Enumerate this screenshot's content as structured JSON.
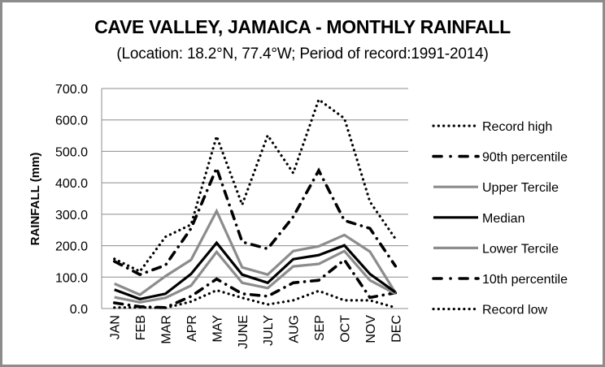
{
  "chart_data": {
    "type": "line",
    "title": "CAVE VALLEY, JAMAICA - MONTHLY RAINFALL",
    "subtitle": "(Location: 18.2°N, 77.4°W; Period of record:1991-2014)",
    "xlabel": "",
    "ylabel": "RAINFALL (mm)",
    "ylim": [
      0,
      700
    ],
    "yticks": [
      0,
      100,
      200,
      300,
      400,
      500,
      600,
      700
    ],
    "ytick_labels": [
      "0.0",
      "100.0",
      "200.0",
      "300.0",
      "400.0",
      "500.0",
      "600.0",
      "700.0"
    ],
    "grid": true,
    "legend_position": "right",
    "categories": [
      "JAN",
      "FEB",
      "MAR",
      "APR",
      "MAY",
      "JUNE",
      "JULY",
      "AUG",
      "SEP",
      "OCT",
      "NOV",
      "DEC"
    ],
    "series": [
      {
        "name": "Record high",
        "style": "dotted",
        "color": "#000000",
        "values": [
          158,
          118,
          228,
          267,
          548,
          330,
          551,
          431,
          665,
          605,
          340,
          222
        ]
      },
      {
        "name": "90th percentile",
        "style": "dash-dot",
        "color": "#000000",
        "values": [
          150,
          108,
          138,
          255,
          447,
          212,
          190,
          292,
          439,
          280,
          255,
          135
        ]
      },
      {
        "name": "Upper Tercile",
        "style": "solid",
        "color": "#8c8c8c",
        "values": [
          79,
          44,
          103,
          155,
          310,
          131,
          108,
          183,
          198,
          234,
          181,
          50
        ]
      },
      {
        "name": "Median",
        "style": "solid",
        "color": "#000000",
        "values": [
          60,
          30,
          47,
          110,
          209,
          108,
          82,
          157,
          170,
          201,
          110,
          52
        ]
      },
      {
        "name": "Lower Tercile",
        "style": "solid",
        "color": "#8c8c8c",
        "values": [
          36,
          20,
          34,
          73,
          180,
          82,
          65,
          134,
          142,
          183,
          90,
          47
        ]
      },
      {
        "name": "10th percentile",
        "style": "dash-dot",
        "color": "#000000",
        "values": [
          18,
          6,
          3,
          39,
          94,
          47,
          39,
          82,
          90,
          155,
          35,
          50
        ]
      },
      {
        "name": "Record low",
        "style": "dotted",
        "color": "#000000",
        "values": [
          3,
          4,
          2,
          22,
          58,
          34,
          13,
          26,
          56,
          26,
          26,
          3
        ]
      }
    ]
  }
}
